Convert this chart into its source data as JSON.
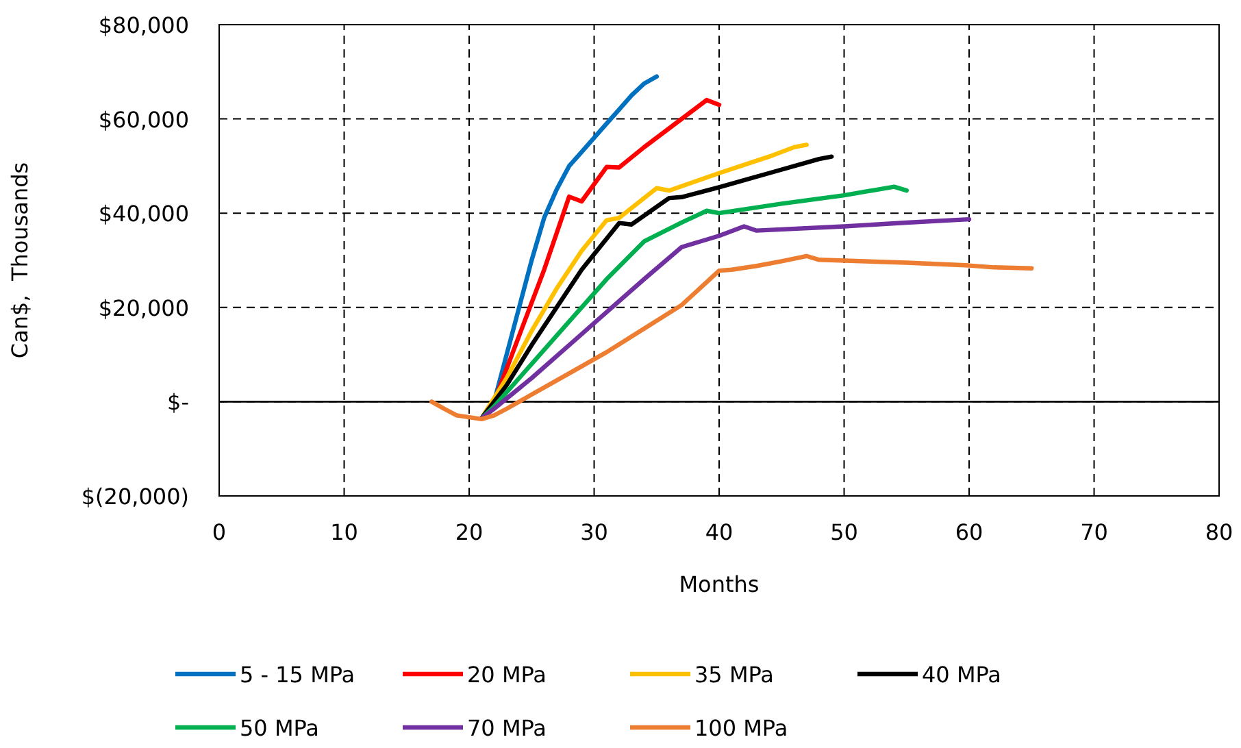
{
  "chart_data": {
    "type": "line",
    "xlabel": "Months",
    "ylabel": "Can$,  Thousands",
    "xlim": [
      0,
      80
    ],
    "xticks": [
      0,
      10,
      20,
      30,
      40,
      50,
      60,
      70,
      80
    ],
    "ylim": [
      -20000,
      80000
    ],
    "yticks": [
      {
        "value": -20000,
        "label": "$(20,000)"
      },
      {
        "value": 0,
        "label": "$-"
      },
      {
        "value": 20000,
        "label": "$20,000"
      },
      {
        "value": 40000,
        "label": "$40,000"
      },
      {
        "value": 60000,
        "label": "$60,000"
      },
      {
        "value": 80000,
        "label": "$80,000"
      }
    ],
    "grid": true,
    "legend": "bottom",
    "line_style": "solid",
    "marker": "none",
    "ref_lines": [
      {
        "axis": "y",
        "value": 0,
        "color": "#000000"
      }
    ],
    "series": [
      {
        "name": "5 - 15 MPa",
        "color": "#0070c0",
        "x": [
          21,
          22,
          23,
          24,
          25,
          26,
          27,
          28,
          29,
          30,
          31,
          32,
          33,
          34,
          35
        ],
        "values": [
          -3500,
          0,
          10000,
          20000,
          30000,
          39000,
          45000,
          50000,
          53000,
          56000,
          59000,
          62000,
          65000,
          67500,
          69000
        ]
      },
      {
        "name": "20 MPa",
        "color": "#ff0000",
        "x": [
          21,
          22,
          24,
          26,
          28,
          29,
          31,
          32,
          34,
          36,
          38,
          39,
          40
        ],
        "values": [
          -3500,
          0,
          14000,
          28000,
          43500,
          42500,
          49800,
          49700,
          54000,
          58000,
          62000,
          64000,
          63000
        ]
      },
      {
        "name": "35 MPa",
        "color": "#ffc000",
        "x": [
          21,
          23,
          25,
          27,
          29,
          31,
          32,
          35,
          36,
          40,
          44,
          46,
          47
        ],
        "values": [
          -3500,
          5000,
          15000,
          24000,
          32000,
          38500,
          39000,
          45300,
          44800,
          48500,
          52000,
          54000,
          54500
        ]
      },
      {
        "name": "40 MPa",
        "color": "#000000",
        "x": [
          21,
          23,
          25,
          27,
          29,
          32,
          33,
          36,
          37,
          40,
          44,
          48,
          49
        ],
        "values": [
          -3500,
          3500,
          12000,
          20000,
          28000,
          37900,
          37600,
          43200,
          43400,
          45500,
          48500,
          51500,
          52000
        ]
      },
      {
        "name": "50 MPa",
        "color": "#00b050",
        "x": [
          21,
          22,
          25,
          28,
          31,
          34,
          37,
          39,
          40,
          45,
          50,
          54,
          55
        ],
        "values": [
          -3500,
          -1000,
          8000,
          17000,
          26000,
          34000,
          38000,
          40500,
          40000,
          42000,
          43800,
          45600,
          44800
        ]
      },
      {
        "name": "70 MPa",
        "color": "#7030a0",
        "x": [
          21,
          22,
          25,
          28,
          31,
          34,
          37,
          40,
          42,
          43,
          50,
          55,
          60
        ],
        "values": [
          -3500,
          -1500,
          5000,
          12000,
          19000,
          26000,
          32800,
          35200,
          37200,
          36300,
          37200,
          38000,
          38700
        ]
      },
      {
        "name": "100 MPa",
        "color": "#ed7d31",
        "x": [
          17,
          18,
          19,
          20,
          21,
          22,
          23,
          25,
          28,
          31,
          34,
          37,
          40,
          41,
          43,
          45,
          47,
          48,
          55,
          60,
          62,
          65
        ],
        "values": [
          0,
          -1500,
          -2900,
          -3300,
          -3700,
          -2900,
          -1500,
          1500,
          6000,
          10500,
          15500,
          20500,
          27800,
          28000,
          28800,
          29800,
          30900,
          30100,
          29500,
          28900,
          28500,
          28300
        ]
      }
    ]
  }
}
